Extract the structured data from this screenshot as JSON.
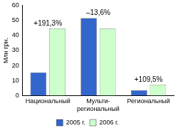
{
  "chart_data": {
    "type": "bar",
    "y_label": "Млн грн.",
    "categories": [
      "Национальный",
      "Мульти-региональный",
      "Региональный"
    ],
    "series": [
      {
        "name": "2005 г.",
        "color": "#3366cc",
        "values": [
          15.3,
          51.5,
          3.5
        ]
      },
      {
        "name": "2006 г.",
        "color": "#ccffcc",
        "values": [
          44.6,
          44.5,
          7.3
        ]
      }
    ],
    "annotations": [
      {
        "category": "Национальный",
        "text": "+191,3%"
      },
      {
        "category": "Мульти-региональный",
        "text": "–13,6%"
      },
      {
        "category": "Региональный",
        "text": "+109,5%"
      }
    ],
    "ylim": [
      0,
      60
    ],
    "yticks": [
      0,
      10,
      20,
      30,
      40,
      50,
      60
    ],
    "grid": false,
    "legend": "bottom"
  }
}
